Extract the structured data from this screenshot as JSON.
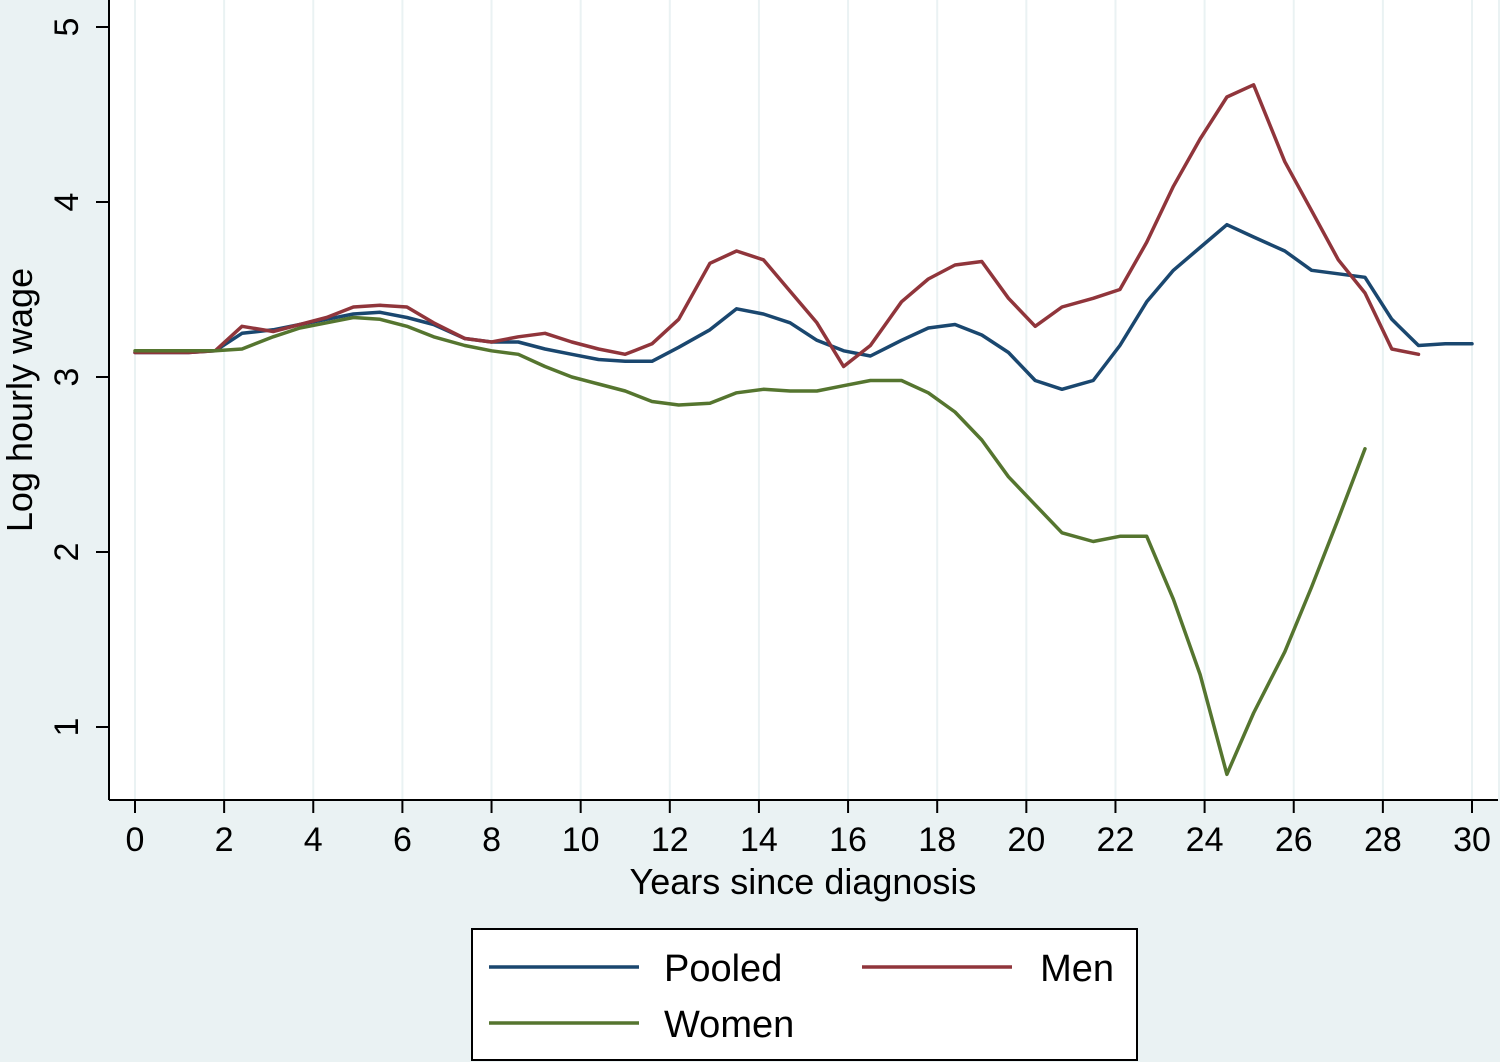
{
  "chart_data": {
    "type": "line",
    "title": "",
    "xlabel": "Years since diagnosis",
    "ylabel": "Log hourly wage",
    "xlim": [
      0,
      30
    ],
    "ylim": [
      0.5,
      5.1
    ],
    "xticks": [
      0,
      2,
      4,
      6,
      8,
      10,
      12,
      14,
      16,
      18,
      20,
      22,
      24,
      26,
      28,
      30
    ],
    "yticks": [
      1,
      2,
      3,
      4,
      5
    ],
    "grid": "vertical",
    "legend_position": "bottom",
    "series": [
      {
        "name": "Pooled",
        "color": "#1a476f",
        "x": [
          0,
          0.6,
          1.2,
          1.8,
          2.4,
          3.1,
          3.7,
          4.3,
          4.9,
          5.5,
          6.1,
          6.7,
          7.4,
          8.0,
          8.6,
          9.2,
          9.8,
          10.4,
          11.0,
          11.6,
          12.2,
          12.9,
          13.5,
          14.1,
          14.7,
          15.3,
          15.9,
          16.5,
          17.2,
          17.8,
          18.4,
          19.0,
          19.6,
          20.2,
          20.8,
          21.5,
          22.1,
          22.7,
          23.3,
          23.9,
          24.5,
          25.1,
          25.8,
          26.4,
          27.0,
          27.6,
          28.2,
          28.8,
          29.4,
          30.0
        ],
        "values": [
          3.14,
          3.14,
          3.14,
          3.15,
          3.25,
          3.27,
          3.3,
          3.33,
          3.36,
          3.37,
          3.34,
          3.3,
          3.22,
          3.2,
          3.2,
          3.16,
          3.13,
          3.1,
          3.09,
          3.09,
          3.17,
          3.27,
          3.39,
          3.36,
          3.31,
          3.21,
          3.15,
          3.12,
          3.21,
          3.28,
          3.3,
          3.24,
          3.14,
          2.98,
          2.93,
          2.98,
          3.18,
          3.43,
          3.61,
          3.74,
          3.87,
          3.8,
          3.72,
          3.61,
          3.59,
          3.57,
          3.33,
          3.18,
          3.19,
          3.19
        ]
      },
      {
        "name": "Men",
        "color": "#90353b",
        "x": [
          0,
          0.6,
          1.2,
          1.8,
          2.4,
          3.1,
          3.7,
          4.3,
          4.9,
          5.5,
          6.1,
          6.7,
          7.4,
          8.0,
          8.6,
          9.2,
          9.8,
          10.4,
          11.0,
          11.6,
          12.2,
          12.9,
          13.5,
          14.1,
          14.7,
          15.3,
          15.9,
          16.5,
          17.2,
          17.8,
          18.4,
          19.0,
          19.6,
          20.2,
          20.8,
          21.5,
          22.1,
          22.7,
          23.3,
          23.9,
          24.5,
          25.1,
          25.8,
          26.4,
          27.0,
          27.6,
          28.2,
          28.8
        ],
        "values": [
          3.14,
          3.14,
          3.14,
          3.15,
          3.29,
          3.26,
          3.3,
          3.34,
          3.4,
          3.41,
          3.4,
          3.31,
          3.22,
          3.2,
          3.23,
          3.25,
          3.2,
          3.16,
          3.13,
          3.19,
          3.33,
          3.65,
          3.72,
          3.67,
          3.49,
          3.31,
          3.06,
          3.18,
          3.43,
          3.56,
          3.64,
          3.66,
          3.45,
          3.29,
          3.4,
          3.45,
          3.5,
          3.77,
          4.09,
          4.36,
          4.6,
          4.67,
          4.23,
          3.95,
          3.67,
          3.48,
          3.16,
          3.13
        ]
      },
      {
        "name": "Women",
        "color": "#55752f",
        "x": [
          0,
          0.6,
          1.2,
          1.8,
          2.4,
          3.1,
          3.7,
          4.3,
          4.9,
          5.5,
          6.1,
          6.7,
          7.4,
          8.0,
          8.6,
          9.2,
          9.8,
          10.4,
          11.0,
          11.6,
          12.2,
          12.9,
          13.5,
          14.1,
          14.7,
          15.3,
          15.9,
          16.5,
          17.2,
          17.8,
          18.4,
          19.0,
          19.6,
          20.2,
          20.8,
          21.5,
          22.1,
          22.7,
          23.3,
          23.9,
          24.5,
          25.1,
          25.8,
          26.4,
          27.0,
          27.6
        ],
        "values": [
          3.15,
          3.15,
          3.15,
          3.15,
          3.16,
          3.23,
          3.28,
          3.31,
          3.34,
          3.33,
          3.29,
          3.23,
          3.18,
          3.15,
          3.13,
          3.06,
          3.0,
          2.96,
          2.92,
          2.86,
          2.84,
          2.85,
          2.91,
          2.93,
          2.92,
          2.92,
          2.95,
          2.98,
          2.98,
          2.91,
          2.8,
          2.64,
          2.43,
          2.27,
          2.11,
          2.06,
          2.09,
          2.09,
          1.73,
          1.3,
          0.73,
          1.08,
          1.43,
          1.8,
          2.19,
          2.59
        ]
      }
    ]
  }
}
